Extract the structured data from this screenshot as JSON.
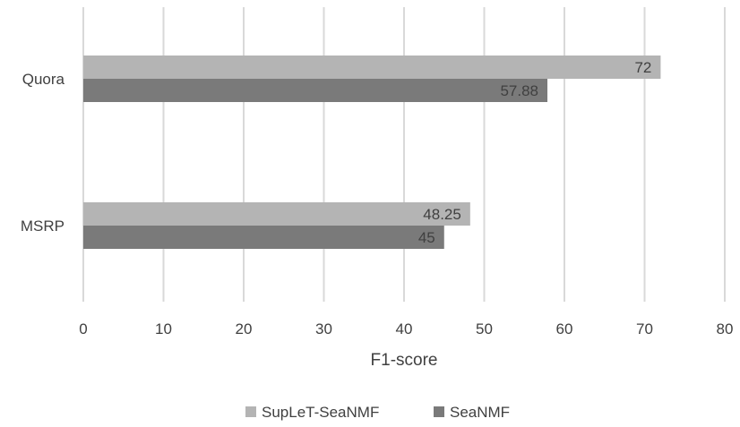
{
  "chart_data": {
    "type": "bar",
    "orientation": "horizontal",
    "categories": [
      "Quora",
      "MSRP"
    ],
    "series": [
      {
        "name": "SupLeT-SeaNMF",
        "values": [
          72,
          48.25
        ],
        "color": "#b4b4b4"
      },
      {
        "name": "SeaNMF",
        "values": [
          57.88,
          45
        ],
        "color": "#7a7a7a"
      }
    ],
    "data_labels": [
      [
        "72",
        "48.25"
      ],
      [
        "57.88",
        "45"
      ]
    ],
    "xlabel": "F1-score",
    "ylabel": "",
    "xlim": [
      0,
      80
    ],
    "xticks": [
      "0",
      "10",
      "20",
      "30",
      "40",
      "50",
      "60",
      "70",
      "80"
    ],
    "grid": "vertical",
    "legend_position": "bottom"
  }
}
